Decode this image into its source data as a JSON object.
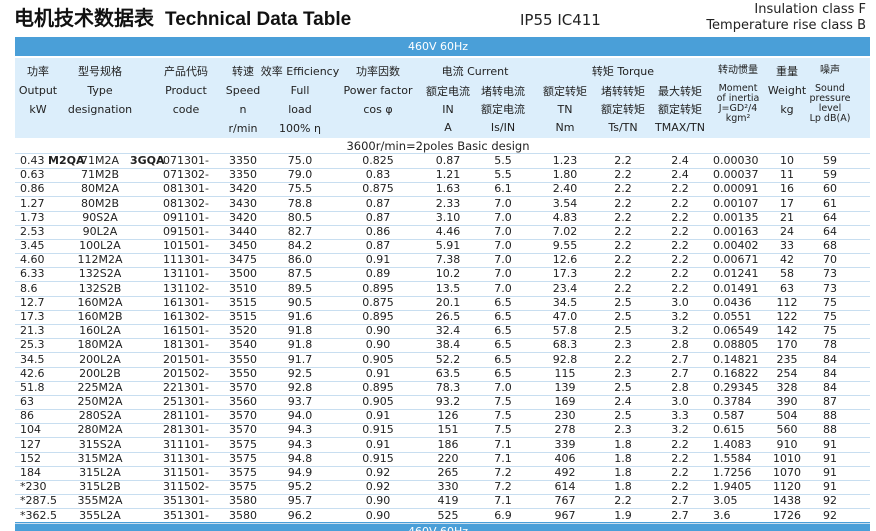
{
  "header": {
    "title_cn": "电机技术数据表",
    "title_en": "Technical Data Table",
    "protection": "IP55  IC411",
    "insulation": "Insulation class F",
    "temperature": "Temperature rise class B"
  },
  "table": {
    "supply": "460V 60Hz",
    "groups": [
      "电流 Current",
      "转矩 Torque"
    ],
    "columns": [
      [
        "功率",
        "Output",
        "kW"
      ],
      [
        "型号规格",
        "Type",
        "designation"
      ],
      [
        "产品代码",
        "Product",
        "code"
      ],
      [
        "转速",
        "Speed",
        "n",
        "r/min"
      ],
      [
        "效率 Efficiency",
        "Full",
        "load",
        "100% η"
      ],
      [
        "功率因数",
        "Power factor",
        "cos φ"
      ],
      [
        "额定电流",
        "IN",
        "A"
      ],
      [
        "堵转电流",
        "额定电流",
        "Is/IN"
      ],
      [
        "额定转矩",
        "TN",
        "Nm"
      ],
      [
        "堵转转矩",
        "额定转矩",
        "Ts/TN"
      ],
      [
        "最大转矩",
        "额定转矩",
        "TMAX/TN"
      ],
      [
        "转动惯量",
        "Moment",
        "of inertia",
        "J=GD²/4",
        "kgm²"
      ],
      [
        "重量",
        "Weight",
        "kg"
      ],
      [
        "噪声",
        "Sound",
        "pressure",
        "level",
        "Lp dB(A)"
      ]
    ],
    "section": "3600r/min=2poles Basic design",
    "series_labels": [
      "M2QA",
      "3GQA"
    ],
    "rows": [
      [
        "0.43",
        "71M2A",
        "071301-",
        "3350",
        "75.0",
        "0.825",
        "0.87",
        "5.5",
        "1.23",
        "2.2",
        "2.4",
        "0.00030",
        "10",
        "59"
      ],
      [
        "0.63",
        "71M2B",
        "071302-",
        "3350",
        "79.0",
        "0.83",
        "1.21",
        "5.5",
        "1.80",
        "2.2",
        "2.4",
        "0.00037",
        "11",
        "59"
      ],
      [
        "0.86",
        "80M2A",
        "081301-",
        "3420",
        "75.5",
        "0.875",
        "1.63",
        "6.1",
        "2.40",
        "2.2",
        "2.2",
        "0.00091",
        "16",
        "60"
      ],
      [
        "1.27",
        "80M2B",
        "081302-",
        "3430",
        "78.8",
        "0.87",
        "2.33",
        "7.0",
        "3.54",
        "2.2",
        "2.2",
        "0.00107",
        "17",
        "61"
      ],
      [
        "1.73",
        "90S2A",
        "091101-",
        "3420",
        "80.5",
        "0.87",
        "3.10",
        "7.0",
        "4.83",
        "2.2",
        "2.2",
        "0.00135",
        "21",
        "64"
      ],
      [
        "2.53",
        "90L2A",
        "091501-",
        "3440",
        "82.7",
        "0.86",
        "4.46",
        "7.0",
        "7.02",
        "2.2",
        "2.2",
        "0.00163",
        "24",
        "64"
      ],
      [
        "3.45",
        "100L2A",
        "101501-",
        "3450",
        "84.2",
        "0.87",
        "5.91",
        "7.0",
        "9.55",
        "2.2",
        "2.2",
        "0.00402",
        "33",
        "68"
      ],
      [
        "4.60",
        "112M2A",
        "111301-",
        "3475",
        "86.0",
        "0.91",
        "7.38",
        "7.0",
        "12.6",
        "2.2",
        "2.2",
        "0.00671",
        "42",
        "70"
      ],
      [
        "6.33",
        "132S2A",
        "131101-",
        "3500",
        "87.5",
        "0.89",
        "10.2",
        "7.0",
        "17.3",
        "2.2",
        "2.2",
        "0.01241",
        "58",
        "73"
      ],
      [
        "8.6",
        "132S2B",
        "131102-",
        "3510",
        "89.5",
        "0.895",
        "13.5",
        "7.0",
        "23.4",
        "2.2",
        "2.2",
        "0.01491",
        "63",
        "73"
      ],
      [
        "12.7",
        "160M2A",
        "161301-",
        "3515",
        "90.5",
        "0.875",
        "20.1",
        "6.5",
        "34.5",
        "2.5",
        "3.0",
        "0.0436",
        "112",
        "75"
      ],
      [
        "17.3",
        "160M2B",
        "161302-",
        "3515",
        "91.6",
        "0.895",
        "26.5",
        "6.5",
        "47.0",
        "2.5",
        "3.2",
        "0.0551",
        "122",
        "75"
      ],
      [
        "21.3",
        "160L2A",
        "161501-",
        "3520",
        "91.8",
        "0.90",
        "32.4",
        "6.5",
        "57.8",
        "2.5",
        "3.2",
        "0.06549",
        "142",
        "75"
      ],
      [
        "25.3",
        "180M2A",
        "181301-",
        "3540",
        "91.8",
        "0.90",
        "38.4",
        "6.5",
        "68.3",
        "2.3",
        "2.8",
        "0.08805",
        "170",
        "78"
      ],
      [
        "34.5",
        "200L2A",
        "201501-",
        "3550",
        "91.7",
        "0.905",
        "52.2",
        "6.5",
        "92.8",
        "2.2",
        "2.7",
        "0.14821",
        "235",
        "84"
      ],
      [
        "42.6",
        "200L2B",
        "201502-",
        "3550",
        "92.5",
        "0.91",
        "63.5",
        "6.5",
        "115",
        "2.3",
        "2.7",
        "0.16822",
        "254",
        "84"
      ],
      [
        "51.8",
        "225M2A",
        "221301-",
        "3570",
        "92.8",
        "0.895",
        "78.3",
        "7.0",
        "139",
        "2.5",
        "2.8",
        "0.29345",
        "328",
        "84"
      ],
      [
        "63",
        "250M2A",
        "251301-",
        "3560",
        "93.7",
        "0.905",
        "93.2",
        "7.5",
        "169",
        "2.4",
        "3.0",
        "0.3784",
        "390",
        "87"
      ],
      [
        "86",
        "280S2A",
        "281101-",
        "3570",
        "94.0",
        "0.91",
        "126",
        "7.5",
        "230",
        "2.5",
        "3.3",
        "0.587",
        "504",
        "88"
      ],
      [
        "104",
        "280M2A",
        "281301-",
        "3570",
        "94.3",
        "0.915",
        "151",
        "7.5",
        "278",
        "2.3",
        "3.2",
        "0.615",
        "560",
        "88"
      ],
      [
        "127",
        "315S2A",
        "311101-",
        "3575",
        "94.3",
        "0.91",
        "186",
        "7.1",
        "339",
        "1.8",
        "2.2",
        "1.4083",
        "910",
        "91"
      ],
      [
        "152",
        "315M2A",
        "311301-",
        "3575",
        "94.8",
        "0.915",
        "220",
        "7.1",
        "406",
        "1.8",
        "2.2",
        "1.5584",
        "1010",
        "91"
      ],
      [
        "184",
        "315L2A",
        "311501-",
        "3575",
        "94.9",
        "0.92",
        "265",
        "7.2",
        "492",
        "1.8",
        "2.2",
        "1.7256",
        "1070",
        "91"
      ],
      [
        "*230",
        "315L2B",
        "311502-",
        "3575",
        "95.2",
        "0.92",
        "330",
        "7.2",
        "614",
        "1.8",
        "2.2",
        "1.9405",
        "1120",
        "91"
      ],
      [
        "*287.5",
        "355M2A",
        "351301-",
        "3580",
        "95.7",
        "0.90",
        "419",
        "7.1",
        "767",
        "2.2",
        "2.7",
        "3.05",
        "1438",
        "92"
      ],
      [
        "*362.5",
        "355L2A",
        "351301-",
        "3580",
        "96.2",
        "0.90",
        "525",
        "6.9",
        "967",
        "1.9",
        "2.7",
        "3.6",
        "1726",
        "92"
      ]
    ]
  }
}
